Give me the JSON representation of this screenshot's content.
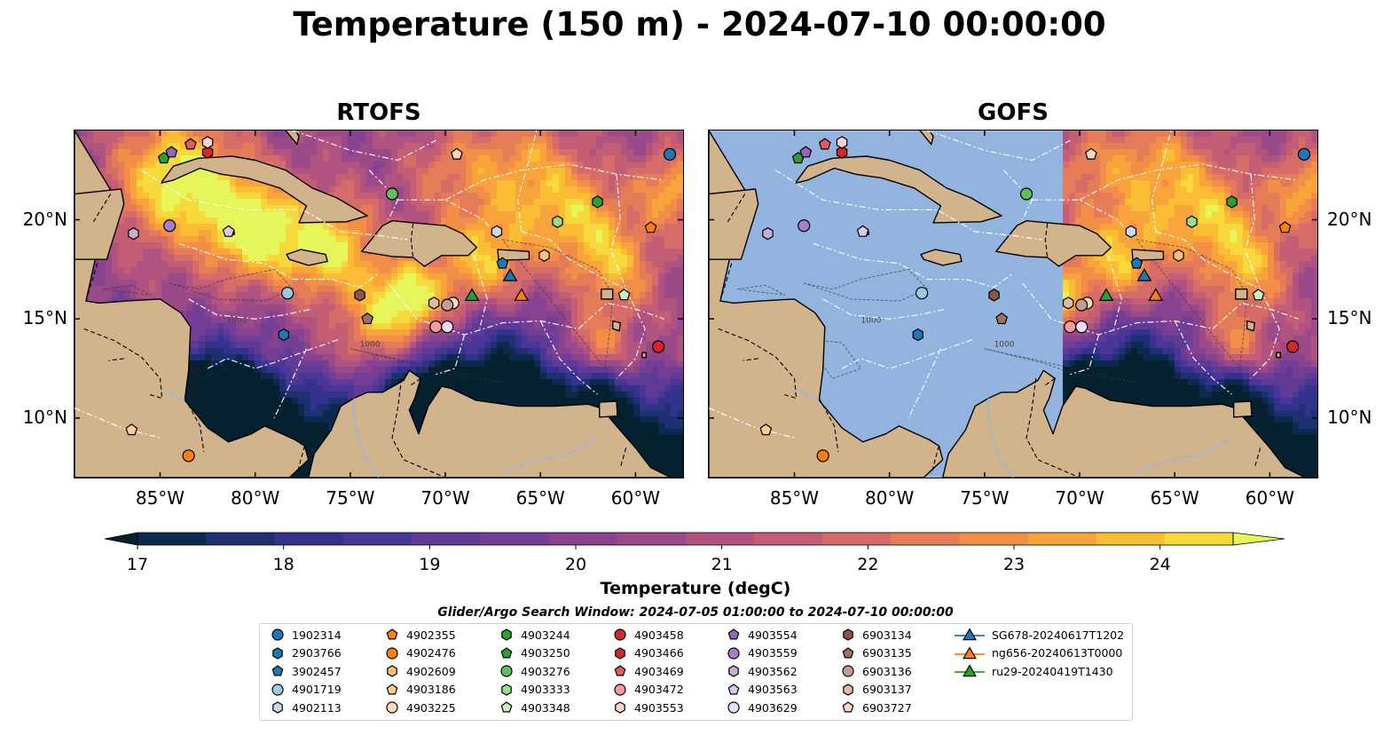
{
  "title": "Temperature (150 m) - 2024-07-10 00:00:00",
  "panels": [
    {
      "title": "RTOFS",
      "model_coverage": "full"
    },
    {
      "title": "GOFS",
      "model_coverage": "east-of-71W"
    }
  ],
  "map": {
    "lon_range": [
      -89.5,
      -57.5
    ],
    "lat_range": [
      7.0,
      24.5
    ],
    "lon_ticks": [
      -85,
      -80,
      -75,
      -70,
      -65,
      -60
    ],
    "lon_tick_labels": [
      "85°W",
      "80°W",
      "75°W",
      "70°W",
      "65°W",
      "60°W"
    ],
    "lat_ticks": [
      10,
      15,
      20
    ],
    "lat_tick_labels": [
      "10°N",
      "15°N",
      "20°N"
    ],
    "land_color": "#d2b48c",
    "ocean_color": "#92b4de",
    "isobath_labels": [
      "1000",
      "1000"
    ]
  },
  "colorbar": {
    "label": "Temperature (degC)",
    "min": 16.5,
    "max": 24.5,
    "ticks": [
      "17",
      "18",
      "19",
      "20",
      "21",
      "22",
      "23",
      "24"
    ],
    "colors": [
      "#05202f",
      "#0b2a4e",
      "#1e3070",
      "#33338e",
      "#4a3696",
      "#5f3a97",
      "#733e95",
      "#874390",
      "#9b4a89",
      "#b05380",
      "#c35e75",
      "#d66c67",
      "#e67b58",
      "#f38e49",
      "#f9a33b",
      "#fbbd34",
      "#f6d93b",
      "#e5f55a"
    ]
  },
  "search_window": "Glider/Argo Search Window: 2024-07-05 01:00:00 to 2024-07-10 00:00:00",
  "legend": [
    {
      "label": "1902314",
      "shape": "circle",
      "color": "#1f77b4"
    },
    {
      "label": "2903766",
      "shape": "hexagon",
      "color": "#1f77b4"
    },
    {
      "label": "3902457",
      "shape": "pentagon",
      "color": "#1f77b4"
    },
    {
      "label": "4901719",
      "shape": "circle",
      "color": "#9ecae1"
    },
    {
      "label": "4902113",
      "shape": "hexagon",
      "color": "#c6dbef"
    },
    {
      "label": "4902355",
      "shape": "pentagon",
      "color": "#ff7f0e"
    },
    {
      "label": "4902476",
      "shape": "circle",
      "color": "#ff7f0e"
    },
    {
      "label": "4902609",
      "shape": "hexagon",
      "color": "#ffbb78"
    },
    {
      "label": "4903186",
      "shape": "pentagon",
      "color": "#ffcc8f"
    },
    {
      "label": "4903225",
      "shape": "circle",
      "color": "#ffdcb8"
    },
    {
      "label": "4903244",
      "shape": "hexagon",
      "color": "#2ca02c"
    },
    {
      "label": "4903250",
      "shape": "pentagon",
      "color": "#2ca02c"
    },
    {
      "label": "4903276",
      "shape": "circle",
      "color": "#5fbf5f"
    },
    {
      "label": "4903333",
      "shape": "hexagon",
      "color": "#98df8a"
    },
    {
      "label": "4903348",
      "shape": "pentagon",
      "color": "#c7f0c0"
    },
    {
      "label": "4903458",
      "shape": "circle",
      "color": "#d62728"
    },
    {
      "label": "4903466",
      "shape": "hexagon",
      "color": "#d62728"
    },
    {
      "label": "4903469",
      "shape": "pentagon",
      "color": "#e05b5b"
    },
    {
      "label": "4903472",
      "shape": "circle",
      "color": "#f29c9b"
    },
    {
      "label": "4903553",
      "shape": "hexagon",
      "color": "#fbd0cf"
    },
    {
      "label": "4903554",
      "shape": "pentagon",
      "color": "#9467bd"
    },
    {
      "label": "4903559",
      "shape": "circle",
      "color": "#a47fcb"
    },
    {
      "label": "4903562",
      "shape": "hexagon",
      "color": "#c5b0d5"
    },
    {
      "label": "4903563",
      "shape": "pentagon",
      "color": "#dcc8f0"
    },
    {
      "label": "4903629",
      "shape": "circle",
      "color": "#eedcfb"
    },
    {
      "label": "6903134",
      "shape": "hexagon",
      "color": "#8c564b"
    },
    {
      "label": "6903135",
      "shape": "pentagon",
      "color": "#a0715f"
    },
    {
      "label": "6903136",
      "shape": "circle",
      "color": "#c49c94"
    },
    {
      "label": "6903137",
      "shape": "hexagon",
      "color": "#e3b8a8"
    },
    {
      "label": "6903727",
      "shape": "pentagon",
      "color": "#fbd5c5"
    },
    {
      "label": "SG678-20240617T1202",
      "shape": "triangle-line",
      "color": "#1f77b4"
    },
    {
      "label": "ng656-20240613T0000",
      "shape": "triangle-line",
      "color": "#ff7f0e"
    },
    {
      "label": "ru29-20240419T1430",
      "shape": "triangle-line",
      "color": "#2ca02c"
    }
  ],
  "floats": [
    {
      "id": "1902314",
      "lon": -58.2,
      "lat": 23.3
    },
    {
      "id": "2903766",
      "lon": -78.5,
      "lat": 14.2
    },
    {
      "id": "3902457",
      "lon": -67.0,
      "lat": 17.8
    },
    {
      "id": "4901719",
      "lon": -78.3,
      "lat": 16.3
    },
    {
      "id": "4902113",
      "lon": -67.3,
      "lat": 19.4
    },
    {
      "id": "4902355",
      "lon": -59.2,
      "lat": 19.6
    },
    {
      "id": "4902476",
      "lon": -83.5,
      "lat": 8.1
    },
    {
      "id": "4902609",
      "lon": -64.8,
      "lat": 18.2
    },
    {
      "id": "4903186",
      "lon": -86.5,
      "lat": 9.4
    },
    {
      "id": "4903225",
      "lon": -69.6,
      "lat": 15.8
    },
    {
      "id": "4903244",
      "lon": -62.0,
      "lat": 20.9
    },
    {
      "id": "4903250",
      "lon": -84.8,
      "lat": 23.1
    },
    {
      "id": "4903276",
      "lon": -72.8,
      "lat": 21.3
    },
    {
      "id": "4903333",
      "lon": -64.1,
      "lat": 19.9
    },
    {
      "id": "4903348",
      "lon": -60.6,
      "lat": 16.2
    },
    {
      "id": "4903458",
      "lon": -58.8,
      "lat": 13.6
    },
    {
      "id": "4903466",
      "lon": -82.5,
      "lat": 23.4
    },
    {
      "id": "4903469",
      "lon": -83.4,
      "lat": 23.8
    },
    {
      "id": "4903472",
      "lon": -70.5,
      "lat": 14.6
    },
    {
      "id": "4903553",
      "lon": -82.5,
      "lat": 23.9
    },
    {
      "id": "4903554",
      "lon": -84.4,
      "lat": 23.4
    },
    {
      "id": "4903559",
      "lon": -84.5,
      "lat": 19.7
    },
    {
      "id": "4903562",
      "lon": -86.4,
      "lat": 19.3
    },
    {
      "id": "4903563",
      "lon": -81.4,
      "lat": 19.4
    },
    {
      "id": "4903629",
      "lon": -69.9,
      "lat": 14.6
    },
    {
      "id": "6903134",
      "lon": -74.5,
      "lat": 16.2
    },
    {
      "id": "6903135",
      "lon": -74.1,
      "lat": 15.0
    },
    {
      "id": "6903136",
      "lon": -69.9,
      "lat": 15.7
    },
    {
      "id": "6903137",
      "lon": -70.6,
      "lat": 15.8
    },
    {
      "id": "6903727",
      "lon": -69.4,
      "lat": 23.3
    }
  ],
  "gliders": [
    {
      "id": "SG678-20240617T1202",
      "lon": -66.6,
      "lat": 17.2
    },
    {
      "id": "ng656-20240613T0000",
      "lon": -66.0,
      "lat": 16.2
    },
    {
      "id": "ru29-20240419T1430",
      "lon": -68.6,
      "lat": 16.2
    }
  ]
}
